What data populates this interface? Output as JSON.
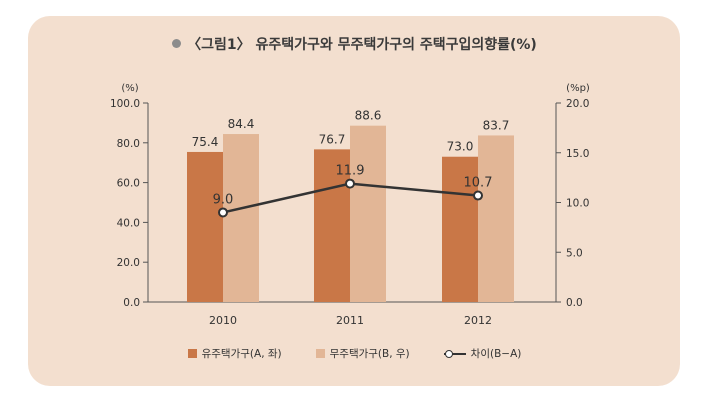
{
  "title": "〈그림1〉 유주택가구와 무주택가구의 주택구입의향률(%)",
  "chart_data": {
    "type": "bar",
    "categories": [
      "2010",
      "2011",
      "2012"
    ],
    "series": [
      {
        "name": "유주택가구(A, 좌)",
        "type": "bar",
        "axis": "left",
        "values": [
          75.4,
          76.7,
          73.0
        ],
        "labels": [
          "75.4",
          "76.7",
          "73.0"
        ],
        "color": "#c97747"
      },
      {
        "name": "무주택가구(B, 우)",
        "type": "bar",
        "axis": "left",
        "values": [
          84.4,
          88.6,
          83.7
        ],
        "labels": [
          "84.4",
          "88.6",
          "83.7"
        ],
        "color": "#e2b696"
      },
      {
        "name": "차이(B−A)",
        "type": "line",
        "axis": "right",
        "values": [
          9.0,
          11.9,
          10.7
        ],
        "labels": [
          "9.0",
          "11.9",
          "10.7"
        ],
        "color": "#333333"
      }
    ],
    "left_axis": {
      "unit": "(%)",
      "ylim": [
        0,
        100
      ],
      "ticks": [
        "0.0",
        "20.0",
        "40.0",
        "60.0",
        "80.0",
        "100.0"
      ]
    },
    "right_axis": {
      "unit": "(%p)",
      "ylim": [
        0,
        20
      ],
      "ticks": [
        "0.0",
        "5.0",
        "10.0",
        "15.0",
        "20.0"
      ]
    },
    "grid": false,
    "legend": "bottom"
  }
}
